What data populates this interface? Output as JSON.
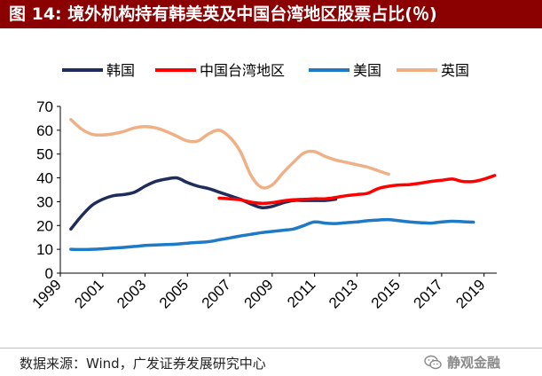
{
  "figure": {
    "title": "图 14: 境外机构持有韩美英及中国台湾地区股票占比(％)"
  },
  "footer": {
    "source": "数据来源：Wind，广发证券发展研究中心",
    "watermark": "静观金融",
    "watermark_icon": "wechat-icon"
  },
  "colors": {
    "title_bg": "#8b0000",
    "korea": "#1f2d5c",
    "taiwan": "#ff0000",
    "usa": "#1f7ac6",
    "uk": "#f0b085"
  },
  "chart_data": {
    "type": "line",
    "title": "",
    "xlabel": "",
    "ylabel": "",
    "xlim": [
      1999,
      2019.6
    ],
    "ylim": [
      0,
      70
    ],
    "x_ticks": [
      1999,
      2001,
      2003,
      2005,
      2007,
      2009,
      2011,
      2013,
      2015,
      2017,
      2019
    ],
    "y_ticks": [
      0,
      10,
      20,
      30,
      40,
      50,
      60,
      70
    ],
    "grid": false,
    "legend_position": "top",
    "series": [
      {
        "name": "韩国",
        "color": "#1f2d5c",
        "points": [
          [
            1999.5,
            18.5
          ],
          [
            2000.0,
            24
          ],
          [
            2000.5,
            28.5
          ],
          [
            2001.0,
            31
          ],
          [
            2001.5,
            32.5
          ],
          [
            2002.0,
            33
          ],
          [
            2002.5,
            34
          ],
          [
            2003.0,
            36.5
          ],
          [
            2003.5,
            38.5
          ],
          [
            2004.0,
            39.5
          ],
          [
            2004.5,
            40
          ],
          [
            2005.0,
            38
          ],
          [
            2005.5,
            36.5
          ],
          [
            2006.0,
            35.5
          ],
          [
            2006.5,
            34
          ],
          [
            2007.0,
            32.5
          ],
          [
            2007.5,
            31
          ],
          [
            2008.0,
            29
          ],
          [
            2008.5,
            27.5
          ],
          [
            2009.0,
            28
          ],
          [
            2009.5,
            29.5
          ],
          [
            2010.0,
            30.5
          ],
          [
            2010.5,
            30.5
          ],
          [
            2011.0,
            30.5
          ],
          [
            2011.5,
            30.5
          ],
          [
            2012.0,
            31
          ]
        ]
      },
      {
        "name": "中国台湾地区",
        "color": "#ff0000",
        "points": [
          [
            2006.5,
            31.5
          ],
          [
            2007.0,
            31.2
          ],
          [
            2007.5,
            30.8
          ],
          [
            2008.0,
            29.8
          ],
          [
            2008.5,
            29.3
          ],
          [
            2009.0,
            29.6
          ],
          [
            2009.5,
            30.3
          ],
          [
            2010.0,
            30.8
          ],
          [
            2010.5,
            31
          ],
          [
            2011.0,
            31.2
          ],
          [
            2011.5,
            31.2
          ],
          [
            2012.0,
            31.8
          ],
          [
            2012.5,
            32.5
          ],
          [
            2013.0,
            33
          ],
          [
            2013.5,
            33.5
          ],
          [
            2014.0,
            35.5
          ],
          [
            2014.5,
            36.5
          ],
          [
            2015.0,
            37
          ],
          [
            2015.5,
            37.2
          ],
          [
            2016.0,
            37.8
          ],
          [
            2016.5,
            38.5
          ],
          [
            2017.0,
            39
          ],
          [
            2017.5,
            39.5
          ],
          [
            2018.0,
            38.5
          ],
          [
            2018.5,
            38.5
          ],
          [
            2019.0,
            39.5
          ],
          [
            2019.5,
            41
          ]
        ]
      },
      {
        "name": "美国",
        "color": "#1f7ac6",
        "points": [
          [
            1999.5,
            10
          ],
          [
            2000.0,
            9.9
          ],
          [
            2000.5,
            10
          ],
          [
            2001.0,
            10.2
          ],
          [
            2001.5,
            10.5
          ],
          [
            2002.0,
            10.8
          ],
          [
            2002.5,
            11.2
          ],
          [
            2003.0,
            11.6
          ],
          [
            2003.5,
            11.8
          ],
          [
            2004.0,
            12
          ],
          [
            2004.5,
            12.2
          ],
          [
            2005.0,
            12.6
          ],
          [
            2005.5,
            12.9
          ],
          [
            2006.0,
            13.2
          ],
          [
            2006.5,
            14
          ],
          [
            2007.0,
            14.8
          ],
          [
            2007.5,
            15.6
          ],
          [
            2008.0,
            16.3
          ],
          [
            2008.5,
            17
          ],
          [
            2009.0,
            17.5
          ],
          [
            2009.5,
            18
          ],
          [
            2010.0,
            18.5
          ],
          [
            2010.5,
            20
          ],
          [
            2011.0,
            21.5
          ],
          [
            2011.5,
            21
          ],
          [
            2012.0,
            20.8
          ],
          [
            2012.5,
            21.2
          ],
          [
            2013.0,
            21.5
          ],
          [
            2013.5,
            22
          ],
          [
            2014.0,
            22.3
          ],
          [
            2014.5,
            22.5
          ],
          [
            2015.0,
            22
          ],
          [
            2015.5,
            21.5
          ],
          [
            2016.0,
            21.2
          ],
          [
            2016.5,
            21
          ],
          [
            2017.0,
            21.5
          ],
          [
            2017.5,
            21.8
          ],
          [
            2018.0,
            21.6
          ],
          [
            2018.5,
            21.4
          ]
        ]
      },
      {
        "name": "英国",
        "color": "#f0b085",
        "points": [
          [
            1999.5,
            64.5
          ],
          [
            2000.0,
            60.5
          ],
          [
            2000.5,
            58.3
          ],
          [
            2001.0,
            58
          ],
          [
            2001.5,
            58.5
          ],
          [
            2002.0,
            59.5
          ],
          [
            2002.5,
            61
          ],
          [
            2003.0,
            61.5
          ],
          [
            2003.5,
            61
          ],
          [
            2004.0,
            59.5
          ],
          [
            2004.5,
            57.5
          ],
          [
            2005.0,
            55.5
          ],
          [
            2005.5,
            55.5
          ],
          [
            2006.0,
            58.5
          ],
          [
            2006.5,
            60
          ],
          [
            2007.0,
            57
          ],
          [
            2007.5,
            51
          ],
          [
            2008.0,
            41
          ],
          [
            2008.5,
            36
          ],
          [
            2009.0,
            37
          ],
          [
            2009.5,
            42
          ],
          [
            2010.0,
            46.5
          ],
          [
            2010.5,
            50.5
          ],
          [
            2011.0,
            51
          ],
          [
            2011.5,
            49
          ],
          [
            2012.0,
            47.5
          ],
          [
            2012.5,
            46.5
          ],
          [
            2013.0,
            45.5
          ],
          [
            2013.5,
            44.5
          ],
          [
            2014.0,
            43
          ],
          [
            2014.5,
            41.5
          ]
        ]
      }
    ]
  }
}
